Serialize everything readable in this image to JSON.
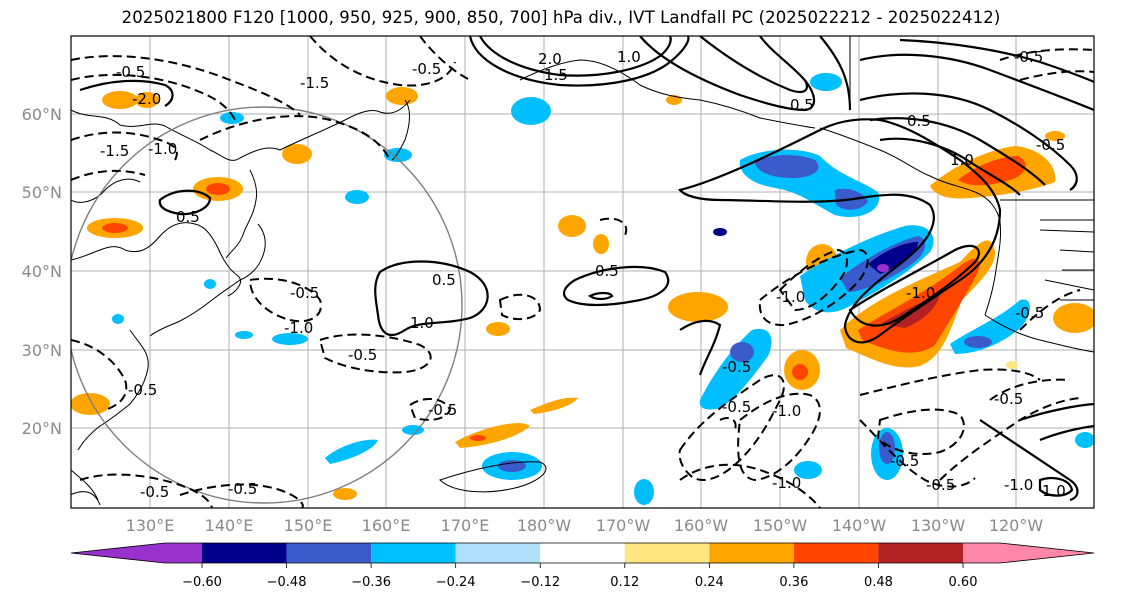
{
  "title": "2025021800 F120 [1000, 950, 925, 900, 850, 700] hPa div., IVT Landfall PC (2025022212 - 2025022412)",
  "lat_labels": [
    "60°N",
    "50°N",
    "40°N",
    "30°N",
    "20°N"
  ],
  "lon_labels": [
    "130°E",
    "140°E",
    "150°E",
    "160°E",
    "170°E",
    "180°W",
    "170°W",
    "160°W",
    "150°W",
    "140°W",
    "130°W",
    "120°W"
  ],
  "colorbar": {
    "colors": [
      "#9932cc",
      "#00008b",
      "#3a5bcc",
      "#00bfff",
      "#b0e0fb",
      "#ffffff",
      "#ffe680",
      "#ffa500",
      "#ff4500",
      "#b22222",
      "#ff88aa"
    ],
    "tick_labels": [
      "−0.60",
      "−0.48",
      "−0.36",
      "−0.24",
      "−0.12",
      "0.12",
      "0.24",
      "0.36",
      "0.48",
      "0.60"
    ]
  },
  "contour_labels": [
    "0.5",
    "1.0",
    "1.5",
    "2.0",
    "-0.5",
    "-1.0",
    "-1.5",
    "-2.0"
  ]
}
